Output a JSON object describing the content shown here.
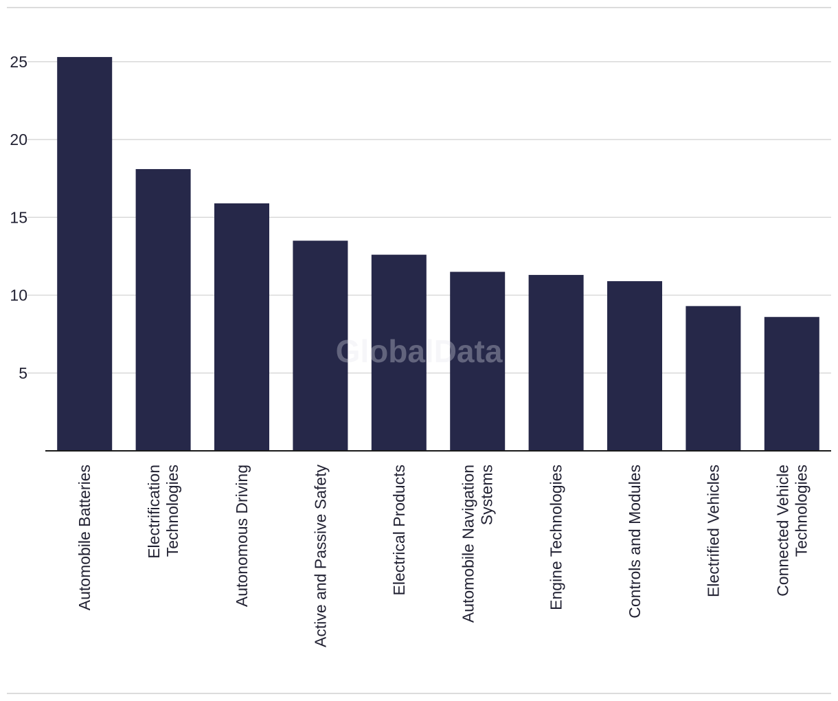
{
  "watermark": "GlobalData",
  "colors": {
    "bar": "#262849",
    "grid": "#d9d9d9",
    "axis": "#1a1a1a",
    "frame": "#dcdcdc"
  },
  "chart_data": {
    "type": "bar",
    "title": "",
    "xlabel": "",
    "ylabel": "",
    "ylim": [
      0,
      27.5
    ],
    "yticks": [
      5,
      10,
      15,
      20,
      25
    ],
    "grid": true,
    "legend": "none",
    "categories": [
      "Automobile Batteries",
      "Electrification Technologies",
      "Autonomous Driving",
      "Active and Passive Safety",
      "Electrical Products",
      "Automobile Navigation Systems",
      "Engine Technologies",
      "Controls and Modules",
      "Electrified Vehicles",
      "Connected Vehicle Technologies"
    ],
    "category_label_lines": [
      [
        "Automobile Batteries"
      ],
      [
        "Electrification",
        "Technologies"
      ],
      [
        "Autonomous Driving"
      ],
      [
        "Active and Passive Safety"
      ],
      [
        "Electrical Products"
      ],
      [
        "Automobile Navigation",
        "Systems"
      ],
      [
        "Engine Technologies"
      ],
      [
        "Controls and Modules"
      ],
      [
        "Electrified Vehicles"
      ],
      [
        "Connected Vehicle",
        "Technologies"
      ]
    ],
    "values": [
      25.3,
      18.1,
      15.9,
      13.5,
      12.6,
      11.5,
      11.3,
      10.9,
      9.3,
      8.6
    ]
  }
}
